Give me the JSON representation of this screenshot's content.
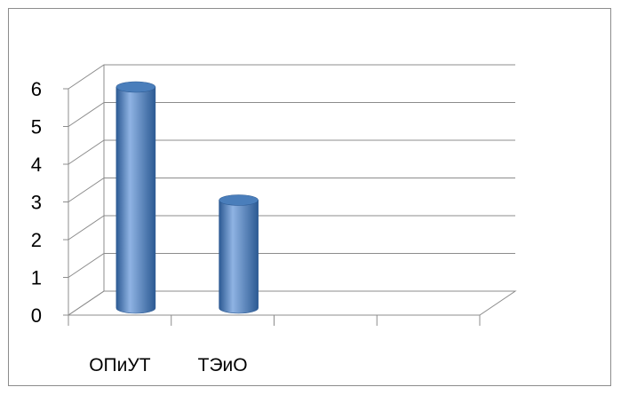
{
  "chart_data": {
    "type": "bar",
    "style": "3d-cylinder",
    "categories": [
      "ОПиУТ",
      "ТЭиО",
      "",
      ""
    ],
    "values": [
      6,
      3,
      null,
      null
    ],
    "title": "",
    "xlabel": "",
    "ylabel": "",
    "ylim": [
      0,
      6
    ],
    "yticks": [
      "0",
      "1",
      "2",
      "3",
      "4",
      "5",
      "6"
    ],
    "grid": true,
    "legend": "none",
    "bar_color": "#4a7ebb",
    "bar_dark": "#2c5a93",
    "bar_light": "#8fb3e3"
  }
}
